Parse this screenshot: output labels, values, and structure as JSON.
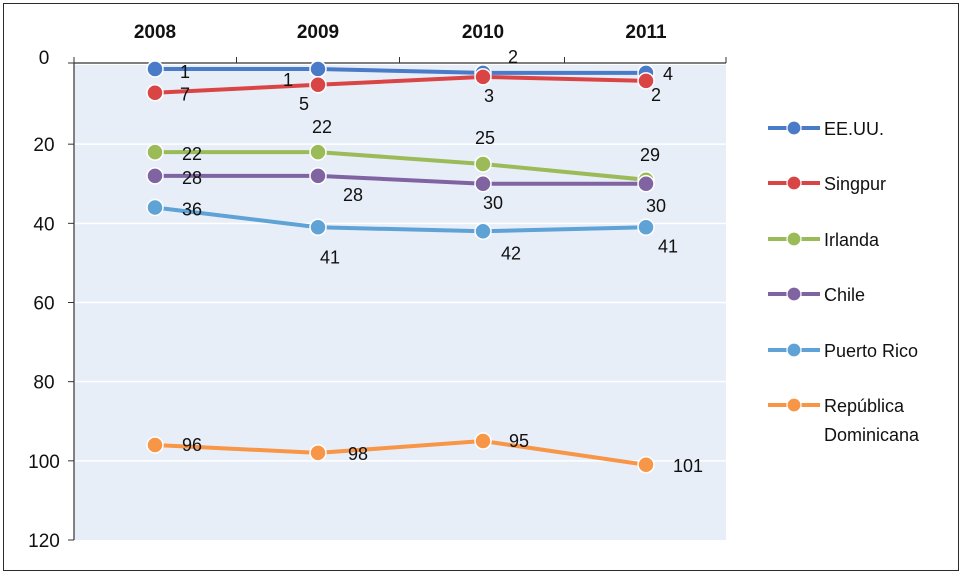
{
  "chart_data": {
    "type": "line",
    "categories": [
      "2008",
      "2009",
      "2010",
      "2011"
    ],
    "ylim": [
      0,
      120
    ],
    "yticks": [
      "0",
      "20",
      "40",
      "60",
      "80",
      "100",
      "120"
    ],
    "y_axis_reversed": true,
    "x_axis_position": "top",
    "grid": "horizontal",
    "legend_position": "right",
    "series": [
      {
        "name": "EE.UU.",
        "color": "#4a7bc8",
        "values": [
          1,
          1,
          2,
          2
        ],
        "labels": [
          "1",
          "1",
          "2",
          "2"
        ]
      },
      {
        "name": "Singpur",
        "color": "#d94545",
        "values": [
          7,
          5,
          3,
          4
        ],
        "labels": [
          "7",
          "5",
          "3",
          "4"
        ]
      },
      {
        "name": "Irlanda",
        "color": "#9bbb59",
        "values": [
          22,
          22,
          25,
          29
        ],
        "labels": [
          "22",
          "22",
          "25",
          "29"
        ]
      },
      {
        "name": "Chile",
        "color": "#8064a2",
        "values": [
          28,
          28,
          30,
          30
        ],
        "labels": [
          "28",
          "28",
          "30",
          "30"
        ]
      },
      {
        "name": "Puerto Rico",
        "color": "#5fa2d6",
        "values": [
          36,
          41,
          42,
          41
        ],
        "labels": [
          "36",
          "41",
          "42",
          "41"
        ]
      },
      {
        "name": "República Dominicana",
        "name_lines": [
          "República",
          "Dominicana"
        ],
        "color": "#f79646",
        "values": [
          96,
          98,
          95,
          101
        ],
        "labels": [
          "96",
          "98",
          "95",
          "101"
        ]
      }
    ]
  }
}
